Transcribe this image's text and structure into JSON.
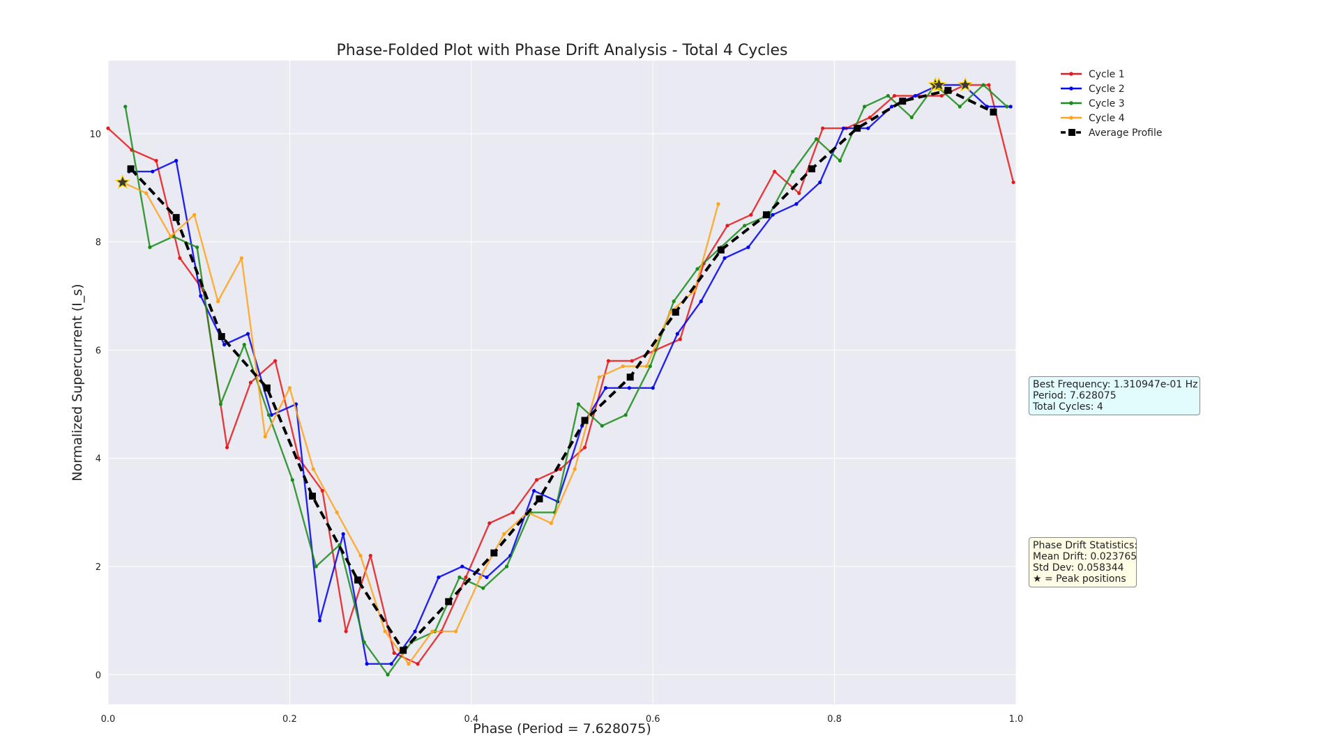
{
  "chart_data": {
    "type": "line",
    "title": "Phase-Folded Plot with Phase Drift Analysis - Total 4 Cycles",
    "xlabel": "Phase (Period = 7.628075)",
    "ylabel": "Normalized Supercurrent (I_s)",
    "xlim": [
      0.0,
      1.0
    ],
    "ylim": [
      -0.55,
      11.35
    ],
    "xticks": [
      0.0,
      0.2,
      0.4,
      0.6,
      0.8,
      1.0
    ],
    "xtick_labels": [
      "0.0",
      "0.2",
      "0.4",
      "0.6",
      "0.8",
      "1.0"
    ],
    "yticks": [
      0,
      2,
      4,
      6,
      8,
      10
    ],
    "ytick_labels": [
      "0",
      "2",
      "4",
      "6",
      "8",
      "10"
    ],
    "grid": true,
    "legend_position": "outside-top-right",
    "background_color": "#eaeaf2",
    "series": [
      {
        "name": "Cycle 1",
        "color": "#e41a1c",
        "marker": "circle",
        "x": [
          0.0,
          0.026,
          0.053,
          0.079,
          0.105,
          0.131,
          0.157,
          0.184,
          0.21,
          0.236,
          0.262,
          0.289,
          0.315,
          0.341,
          0.367,
          0.394,
          0.42,
          0.446,
          0.472,
          0.498,
          0.525,
          0.551,
          0.577,
          0.603,
          0.63,
          0.656,
          0.682,
          0.708,
          0.734,
          0.761,
          0.787,
          0.813,
          0.839,
          0.866,
          0.892,
          0.918,
          0.944,
          0.97,
          0.997
        ],
        "y": [
          10.1,
          9.7,
          9.5,
          7.7,
          7.1,
          4.2,
          5.4,
          5.8,
          4.0,
          3.4,
          0.8,
          2.2,
          0.4,
          0.2,
          0.8,
          1.8,
          2.8,
          3.0,
          3.6,
          3.8,
          4.2,
          5.8,
          5.8,
          6.0,
          6.2,
          7.6,
          8.3,
          8.5,
          9.3,
          8.9,
          10.1,
          10.1,
          10.3,
          10.7,
          10.7,
          10.7,
          10.9,
          10.9,
          9.1
        ]
      },
      {
        "name": "Cycle 2",
        "color": "#0000ee",
        "marker": "circle",
        "x": [
          0.023,
          0.049,
          0.075,
          0.102,
          0.128,
          0.154,
          0.18,
          0.207,
          0.233,
          0.259,
          0.285,
          0.312,
          0.338,
          0.364,
          0.39,
          0.417,
          0.443,
          0.469,
          0.495,
          0.522,
          0.548,
          0.574,
          0.6,
          0.627,
          0.653,
          0.679,
          0.705,
          0.732,
          0.758,
          0.784,
          0.81,
          0.837,
          0.863,
          0.889,
          0.915,
          0.942,
          0.968,
          0.994
        ],
        "y": [
          9.3,
          9.3,
          9.5,
          7.0,
          6.1,
          6.3,
          4.8,
          5.0,
          1.0,
          2.6,
          0.2,
          0.2,
          0.8,
          1.8,
          2.0,
          1.8,
          2.2,
          3.4,
          3.2,
          4.6,
          5.3,
          5.3,
          5.3,
          6.3,
          6.9,
          7.7,
          7.9,
          8.5,
          8.7,
          9.1,
          10.1,
          10.1,
          10.5,
          10.7,
          10.9,
          10.9,
          10.5,
          10.5
        ]
      },
      {
        "name": "Cycle 3",
        "color": "#1a8c1a",
        "marker": "circle",
        "x": [
          0.019,
          0.046,
          0.072,
          0.098,
          0.124,
          0.15,
          0.177,
          0.203,
          0.229,
          0.255,
          0.282,
          0.308,
          0.334,
          0.36,
          0.387,
          0.413,
          0.439,
          0.465,
          0.492,
          0.518,
          0.544,
          0.57,
          0.597,
          0.623,
          0.649,
          0.675,
          0.701,
          0.728,
          0.754,
          0.78,
          0.806,
          0.833,
          0.859,
          0.885,
          0.911,
          0.938,
          0.964,
          0.99
        ],
        "y": [
          10.5,
          7.9,
          8.1,
          7.9,
          5.0,
          6.1,
          4.8,
          3.6,
          2.0,
          2.4,
          0.6,
          0.0,
          0.6,
          0.8,
          1.8,
          1.6,
          2.0,
          3.0,
          3.0,
          5.0,
          4.6,
          4.8,
          5.7,
          6.9,
          7.5,
          7.9,
          8.3,
          8.5,
          9.3,
          9.9,
          9.5,
          10.5,
          10.7,
          10.3,
          10.9,
          10.5,
          10.9,
          10.5
        ]
      },
      {
        "name": "Cycle 4",
        "color": "#ffa31a",
        "marker": "circle",
        "x": [
          0.016,
          0.042,
          0.069,
          0.095,
          0.121,
          0.147,
          0.173,
          0.2,
          0.226,
          0.252,
          0.278,
          0.305,
          0.331,
          0.357,
          0.383,
          0.41,
          0.436,
          0.462,
          0.488,
          0.514,
          0.541,
          0.567,
          0.593,
          0.619,
          0.646,
          0.672
        ],
        "y": [
          9.1,
          8.9,
          8.1,
          8.5,
          6.9,
          7.7,
          4.4,
          5.3,
          3.8,
          3.0,
          2.2,
          0.8,
          0.2,
          0.8,
          0.8,
          1.8,
          2.6,
          3.0,
          2.8,
          3.8,
          5.5,
          5.7,
          5.7,
          6.7,
          7.1,
          8.7
        ]
      },
      {
        "name": "Average Profile",
        "color": "#000000",
        "marker": "square",
        "dashed": true,
        "x": [
          0.025,
          0.075,
          0.125,
          0.175,
          0.225,
          0.275,
          0.325,
          0.375,
          0.425,
          0.475,
          0.525,
          0.575,
          0.625,
          0.675,
          0.725,
          0.775,
          0.825,
          0.875,
          0.925,
          0.975
        ],
        "y": [
          9.35,
          8.45,
          6.25,
          5.3,
          3.3,
          1.75,
          0.45,
          1.35,
          2.25,
          3.25,
          4.7,
          5.5,
          6.7,
          7.85,
          8.5,
          9.35,
          10.1,
          10.6,
          10.8,
          10.4
        ]
      }
    ],
    "peak_markers": [
      {
        "x": 0.016,
        "y": 9.1
      },
      {
        "x": 0.911,
        "y": 10.9
      },
      {
        "x": 0.915,
        "y": 10.9
      },
      {
        "x": 0.944,
        "y": 10.9
      }
    ]
  },
  "info_box": {
    "line1": "Best Frequency: 1.310947e-01 Hz",
    "line2": "Period: 7.628075",
    "line3": "Total Cycles: 4"
  },
  "stats_box": {
    "line1": "Phase Drift Statistics:",
    "line2": "Mean Drift: 0.023765",
    "line3": "Std Dev: 0.058344",
    "line4": "★ = Peak positions"
  }
}
